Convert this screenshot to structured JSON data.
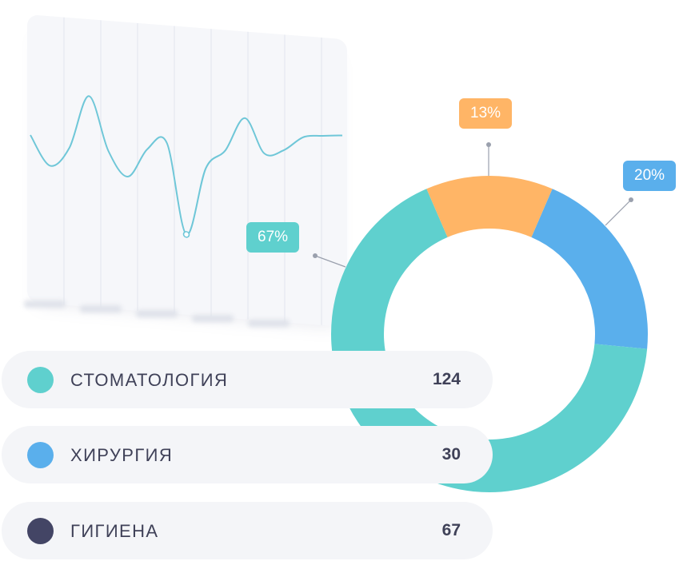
{
  "chart_data": [
    {
      "type": "line",
      "title": "",
      "xlabel": "",
      "ylabel": "",
      "x_tick_labels_visible": false,
      "grid": "vertical",
      "color": "#6fc7d8",
      "x": [
        0,
        0.5,
        1,
        1.5,
        2,
        2.5,
        3,
        3.5,
        4,
        4.5,
        5,
        5.5,
        6,
        6.5,
        7,
        7.5,
        8
      ],
      "values": [
        0.55,
        0.25,
        0.45,
        1.0,
        0.45,
        0.2,
        0.5,
        0.58,
        -0.35,
        0.35,
        0.55,
        0.9,
        0.55,
        0.6,
        0.75,
        0.78,
        0.8
      ],
      "highlight_index": 8
    },
    {
      "type": "pie",
      "style": "donut",
      "slices": [
        {
          "label": "67%",
          "value": 67,
          "color": "#5fd0ce"
        },
        {
          "label": "13%",
          "value": 13,
          "color": "#ffb566"
        },
        {
          "label": "20%",
          "value": 20,
          "color": "#5aafec"
        }
      ]
    }
  ],
  "legend": [
    {
      "label": "СТОМАТОЛОГИЯ",
      "value": "124",
      "color": "#5fd0ce"
    },
    {
      "label": "ХИРУРГИЯ",
      "value": "30",
      "color": "#5aafec"
    },
    {
      "label": "ГИГИЕНА",
      "value": "67",
      "color": "#434565"
    }
  ]
}
